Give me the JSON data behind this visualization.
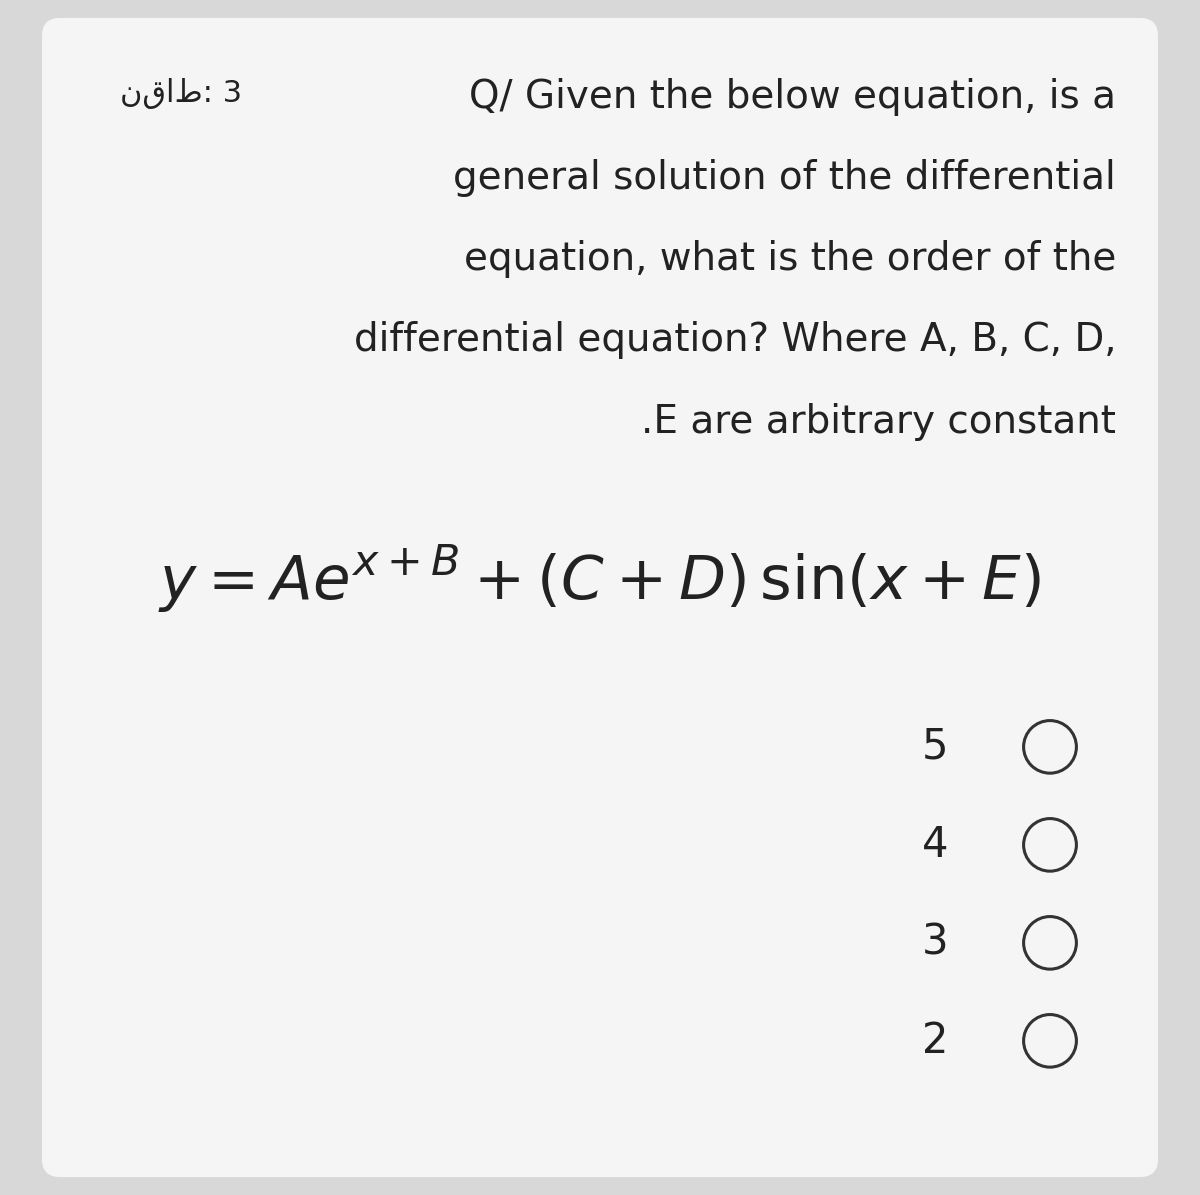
{
  "bg_outer": "#d8d8d8",
  "bg_inner": "#f5f5f5",
  "text_color": "#222222",
  "arabic_label": "نقاط: 3",
  "question_lines": [
    "Q/ Given the below equation, is a",
    "general solution of the differential",
    "equation, what is the order of the",
    "differential equation? Where A, B, C, D,",
    ".E are arbitrary constant"
  ],
  "choices": [
    "5",
    "4",
    "3",
    "2"
  ],
  "font_size_question": 28,
  "font_size_equation": 44,
  "font_size_choices": 30,
  "font_size_arabic": 22,
  "circle_color": "#333333",
  "circle_linewidth": 2.2
}
